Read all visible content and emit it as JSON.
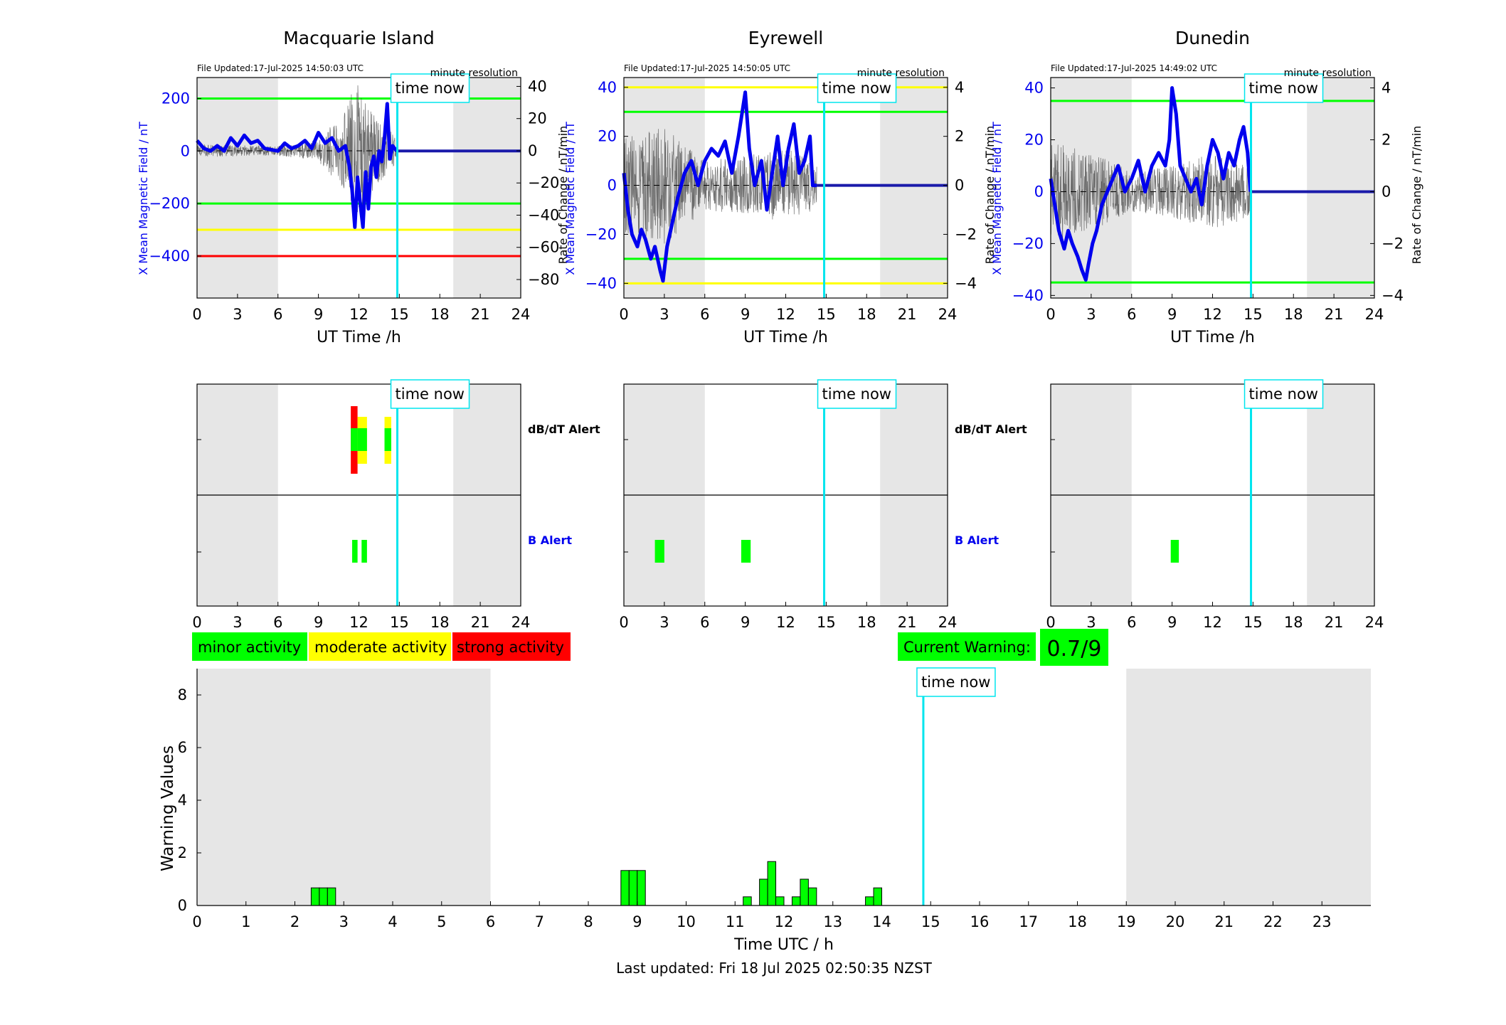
{
  "footer": {
    "last_updated": "Last updated: Fri 18 Jul 2025 02:50:35 NZST"
  },
  "colors": {
    "minor": "#00ff00",
    "moderate": "#ffff00",
    "strong": "#ff0000",
    "b_field": "#0000ee",
    "time_now": "#00e5ee",
    "night_shade": "#e6e6e6",
    "alert_b_label": "#0000ee"
  },
  "legend": {
    "minor": "minor activity",
    "moderate": "moderate activity",
    "strong": "strong activity"
  },
  "current_warning": {
    "label": "Current Warning:",
    "value": "0.7/9"
  },
  "time_now_label": "time now",
  "time_now_utc": 14.85,
  "night_ranges_utc": [
    [
      0,
      6
    ],
    [
      19,
      24
    ]
  ],
  "alert_labels": {
    "dbdt": "dB/dT Alert",
    "b": "B Alert"
  },
  "chart_data": [
    {
      "type": "line",
      "station": "Macquarie Island",
      "title": "Macquarie Island",
      "file_updated": "File Updated:17-Jul-2025 14:50:03 UTC",
      "resolution": "minute resolution",
      "xlabel": "UT Time /h",
      "ylabel": "X Mean Magnetic Field / nT",
      "y2label": "Rate of Change / nT/min",
      "xlim": [
        0,
        24
      ],
      "ylim": [
        -560,
        280
      ],
      "y2lim": [
        -91.5,
        45.5
      ],
      "xticks": [
        0,
        3,
        6,
        9,
        12,
        15,
        18,
        21,
        24
      ],
      "yticks": [
        -400,
        -200,
        0,
        200
      ],
      "y2ticks": [
        -80,
        -60,
        -40,
        -20,
        0,
        20,
        40
      ],
      "thresholds": [
        {
          "value": 200,
          "level": "minor"
        },
        {
          "value": -200,
          "level": "minor"
        },
        {
          "value": -300,
          "level": "moderate"
        },
        {
          "value": -400,
          "level": "strong"
        }
      ],
      "series": [
        {
          "axis": "left",
          "x": [
            0,
            0.5,
            1,
            1.5,
            2,
            2.5,
            3,
            3.5,
            4,
            4.5,
            5,
            5.5,
            6,
            6.5,
            7,
            7.5,
            8,
            8.5,
            9,
            9.5,
            10,
            10.5,
            11,
            11.3,
            11.5,
            11.7,
            11.9,
            12.1,
            12.3,
            12.5,
            12.7,
            12.9,
            13.1,
            13.3,
            13.5,
            13.7,
            13.9,
            14.1,
            14.3,
            14.5,
            14.8,
            24
          ],
          "y": [
            40,
            10,
            0,
            20,
            0,
            50,
            20,
            60,
            30,
            40,
            10,
            5,
            0,
            30,
            10,
            20,
            40,
            10,
            70,
            30,
            50,
            0,
            20,
            -60,
            -150,
            -290,
            -100,
            -200,
            -290,
            -80,
            -220,
            -60,
            -20,
            -100,
            0,
            -40,
            50,
            180,
            -30,
            20,
            0,
            0
          ]
        },
        {
          "axis": "right",
          "style": "noise",
          "x_range": [
            0,
            14.8
          ],
          "amplitude": [
            [
              0,
              4
            ],
            [
              6,
              3
            ],
            [
              9,
              7
            ],
            [
              11,
              25
            ],
            [
              11.7,
              45
            ],
            [
              13,
              25
            ],
            [
              14.8,
              8
            ]
          ]
        }
      ]
    },
    {
      "type": "line",
      "station": "Eyrewell",
      "title": "Eyrewell",
      "file_updated": "File Updated:17-Jul-2025 14:50:05 UTC",
      "resolution": "minute resolution",
      "xlabel": "UT Time /h",
      "ylabel": "X Mean Magnetic Field / nT",
      "y2label": "Rate of Change / nT/min",
      "xlim": [
        0,
        24
      ],
      "ylim": [
        -46,
        44
      ],
      "y2lim": [
        -4.6,
        4.4
      ],
      "xticks": [
        0,
        3,
        6,
        9,
        12,
        15,
        18,
        21,
        24
      ],
      "yticks": [
        -40,
        -20,
        0,
        20,
        40
      ],
      "y2ticks": [
        -4,
        -2,
        0,
        2,
        4
      ],
      "thresholds": [
        {
          "value": 40,
          "level": "moderate"
        },
        {
          "value": 30,
          "level": "minor"
        },
        {
          "value": -30,
          "level": "minor"
        },
        {
          "value": -40,
          "level": "moderate"
        }
      ],
      "series": [
        {
          "axis": "left",
          "x": [
            0,
            0.3,
            0.6,
            1,
            1.3,
            1.6,
            2,
            2.3,
            2.7,
            2.9,
            3.2,
            3.6,
            4,
            4.5,
            5,
            5.5,
            6,
            6.5,
            7,
            7.5,
            8,
            8.5,
            9,
            9.3,
            9.7,
            10.2,
            10.6,
            11,
            11.4,
            11.8,
            12.2,
            12.6,
            13,
            13.4,
            13.8,
            14,
            14.3,
            24
          ],
          "y": [
            5,
            -10,
            -20,
            -25,
            -18,
            -22,
            -30,
            -25,
            -35,
            -39,
            -25,
            -15,
            -5,
            5,
            10,
            0,
            10,
            15,
            12,
            18,
            5,
            20,
            38,
            15,
            0,
            10,
            -10,
            5,
            20,
            0,
            15,
            25,
            5,
            10,
            20,
            0,
            0,
            0
          ]
        },
        {
          "axis": "right",
          "style": "noise",
          "x_range": [
            0,
            14.3
          ],
          "amplitude": [
            [
              0,
              2
            ],
            [
              3,
              2.4
            ],
            [
              6,
              1
            ],
            [
              9,
              1.2
            ],
            [
              12,
              1.5
            ],
            [
              14.3,
              1
            ]
          ]
        }
      ]
    },
    {
      "type": "line",
      "station": "Dunedin",
      "title": "Dunedin",
      "file_updated": "File Updated:17-Jul-2025 14:49:02 UTC",
      "resolution": "minute resolution",
      "xlabel": "UT Time /h",
      "ylabel": "X Mean Magnetic Field / nT",
      "y2label": "Rate of Change / nT/min",
      "xlim": [
        0,
        24
      ],
      "ylim": [
        -41,
        44
      ],
      "y2lim": [
        -4.1,
        4.4
      ],
      "xticks": [
        0,
        3,
        6,
        9,
        12,
        15,
        18,
        21,
        24
      ],
      "yticks": [
        -40,
        -20,
        0,
        20,
        40
      ],
      "y2ticks": [
        -4,
        -2,
        0,
        2,
        4
      ],
      "thresholds": [
        {
          "value": 35,
          "level": "minor"
        },
        {
          "value": -35,
          "level": "minor"
        }
      ],
      "series": [
        {
          "axis": "left",
          "x": [
            0,
            0.3,
            0.6,
            1,
            1.3,
            1.6,
            2,
            2.3,
            2.6,
            2.8,
            3.1,
            3.4,
            3.8,
            4.2,
            4.6,
            5,
            5.5,
            6,
            6.5,
            7,
            7.5,
            8,
            8.5,
            8.8,
            9,
            9.3,
            9.6,
            10,
            10.4,
            10.8,
            11.2,
            11.6,
            12,
            12.4,
            12.8,
            13.2,
            13.6,
            14,
            14.3,
            14.6,
            14.8,
            24
          ],
          "y": [
            5,
            -5,
            -15,
            -22,
            -15,
            -20,
            -25,
            -30,
            -34,
            -28,
            -20,
            -15,
            -5,
            0,
            5,
            10,
            0,
            5,
            12,
            0,
            10,
            15,
            10,
            20,
            40,
            30,
            10,
            5,
            0,
            5,
            -5,
            10,
            20,
            15,
            5,
            15,
            10,
            20,
            25,
            15,
            0,
            0
          ]
        },
        {
          "axis": "right",
          "style": "noise",
          "x_range": [
            0,
            14.8
          ],
          "amplitude": [
            [
              0,
              2
            ],
            [
              3,
              1.5
            ],
            [
              6,
              0.8
            ],
            [
              9,
              1
            ],
            [
              12,
              1.5
            ],
            [
              14.8,
              1
            ]
          ]
        }
      ]
    }
  ],
  "alert_charts": [
    {
      "station": "Macquarie Island",
      "xlim": [
        0,
        24
      ],
      "xticks": [
        0,
        3,
        6,
        9,
        12,
        15,
        18,
        21,
        24
      ],
      "dbdt_alerts": [
        {
          "start": 11.4,
          "end": 11.9,
          "level": "strong"
        },
        {
          "start": 11.9,
          "end": 12.6,
          "level": "moderate"
        },
        {
          "start": 13.9,
          "end": 14.4,
          "level": "moderate"
        }
      ],
      "b_alerts": [
        {
          "start": 11.5,
          "end": 11.9,
          "level": "minor"
        },
        {
          "start": 12.2,
          "end": 12.6,
          "level": "minor"
        }
      ]
    },
    {
      "station": "Eyrewell",
      "xlim": [
        0,
        24
      ],
      "xticks": [
        0,
        3,
        6,
        9,
        12,
        15,
        18,
        21,
        24
      ],
      "dbdt_alerts": [],
      "b_alerts": [
        {
          "start": 2.3,
          "end": 3.0,
          "level": "minor"
        },
        {
          "start": 8.7,
          "end": 9.4,
          "level": "minor"
        }
      ]
    },
    {
      "station": "Dunedin",
      "xlim": [
        0,
        24
      ],
      "xticks": [
        0,
        3,
        6,
        9,
        12,
        15,
        18,
        21,
        24
      ],
      "dbdt_alerts": [],
      "b_alerts": [
        {
          "start": 8.9,
          "end": 9.5,
          "level": "minor"
        }
      ]
    }
  ],
  "warning_chart": {
    "type": "bar",
    "xlabel": "Time UTC / h",
    "ylabel": "Warning Values",
    "xlim": [
      0,
      24
    ],
    "ylim": [
      0,
      9
    ],
    "xticks": [
      0,
      1,
      2,
      3,
      4,
      5,
      6,
      7,
      8,
      9,
      10,
      11,
      12,
      13,
      14,
      15,
      16,
      17,
      18,
      19,
      20,
      21,
      22,
      23
    ],
    "yticks": [
      0,
      2,
      4,
      6,
      8
    ],
    "bar_width_h": 0.1667,
    "x": [
      2.4167,
      2.5833,
      2.75,
      8.75,
      8.9167,
      9.0833,
      11.25,
      11.5833,
      11.75,
      11.9167,
      12.25,
      12.4167,
      12.5833,
      13.75,
      13.9167
    ],
    "values": [
      0.67,
      0.67,
      0.67,
      1.33,
      1.33,
      1.33,
      0.33,
      1.0,
      1.67,
      0.33,
      0.33,
      1.0,
      0.67,
      0.33,
      0.67
    ]
  }
}
